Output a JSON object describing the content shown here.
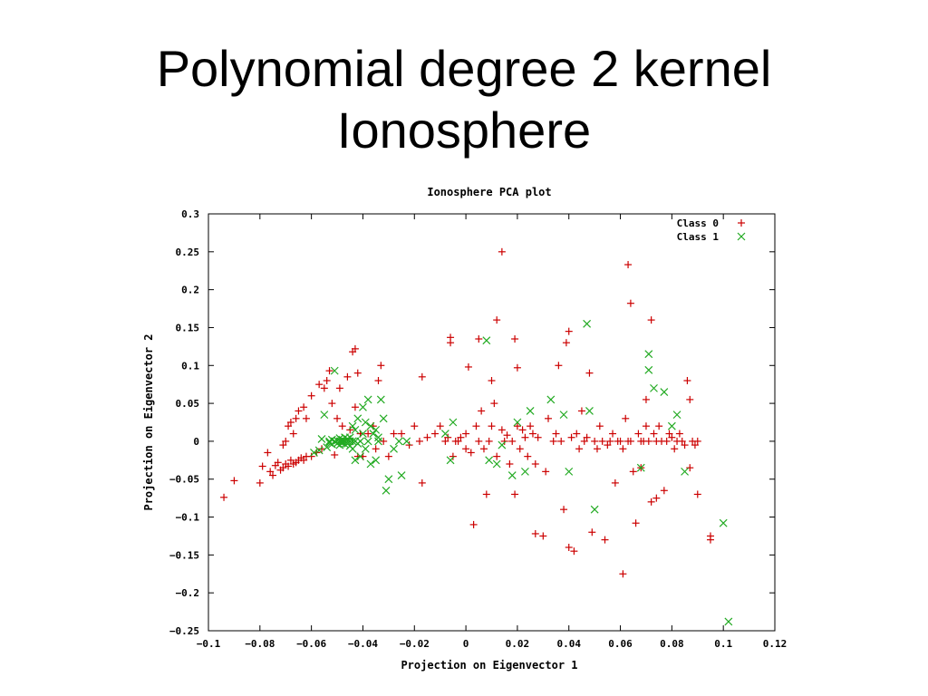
{
  "slide": {
    "title_line1": "Polynomial degree 2 kernel",
    "title_line2": "Ionosphere"
  },
  "chart_data": {
    "type": "scatter",
    "title": "Ionosphere PCA plot",
    "xlabel": "Projection on Eigenvector 1",
    "ylabel": "Projection on Eigenvector 2",
    "xlim": [
      -0.1,
      0.12
    ],
    "ylim": [
      -0.25,
      0.3
    ],
    "xticks": [
      "-0.1",
      "-0.08",
      "-0.06",
      "-0.04",
      "-0.02",
      "0",
      "0.02",
      "0.04",
      "0.06",
      "0.08",
      "0.1",
      "0.12"
    ],
    "yticks": [
      "-0.25",
      "-0.2",
      "-0.15",
      "-0.1",
      "-0.05",
      "0",
      "0.05",
      "0.1",
      "0.15",
      "0.2",
      "0.25",
      "0.3"
    ],
    "grid": false,
    "legend_position": "top-right",
    "series": [
      {
        "name": "Class 0",
        "marker": "+",
        "color": "#cc0000",
        "points": [
          [
            -0.094,
            -0.074
          ],
          [
            -0.09,
            -0.052
          ],
          [
            -0.08,
            -0.055
          ],
          [
            -0.079,
            -0.033
          ],
          [
            -0.077,
            -0.015
          ],
          [
            -0.076,
            -0.04
          ],
          [
            -0.075,
            -0.045
          ],
          [
            -0.074,
            -0.032
          ],
          [
            -0.073,
            -0.028
          ],
          [
            -0.072,
            -0.038
          ],
          [
            -0.071,
            -0.035
          ],
          [
            -0.071,
            -0.005
          ],
          [
            -0.07,
            -0.03
          ],
          [
            -0.07,
            0.0
          ],
          [
            -0.069,
            -0.033
          ],
          [
            -0.069,
            0.02
          ],
          [
            -0.068,
            -0.025
          ],
          [
            -0.068,
            0.025
          ],
          [
            -0.067,
            -0.03
          ],
          [
            -0.067,
            0.01
          ],
          [
            -0.066,
            -0.028
          ],
          [
            -0.066,
            0.03
          ],
          [
            -0.065,
            -0.025
          ],
          [
            -0.065,
            0.04
          ],
          [
            -0.064,
            -0.022
          ],
          [
            -0.063,
            -0.025
          ],
          [
            -0.063,
            0.045
          ],
          [
            -0.062,
            -0.02
          ],
          [
            -0.062,
            0.03
          ],
          [
            -0.06,
            -0.02
          ],
          [
            -0.06,
            0.06
          ],
          [
            -0.058,
            -0.015
          ],
          [
            -0.057,
            0.075
          ],
          [
            -0.056,
            -0.01
          ],
          [
            -0.055,
            0.07
          ],
          [
            -0.054,
            0.08
          ],
          [
            -0.053,
            0.093
          ],
          [
            -0.052,
            0.05
          ],
          [
            -0.051,
            -0.018
          ],
          [
            -0.05,
            0.03
          ],
          [
            -0.049,
            0.07
          ],
          [
            -0.048,
            0.02
          ],
          [
            -0.046,
            0.085
          ],
          [
            -0.045,
            0.015
          ],
          [
            -0.044,
            0.118
          ],
          [
            -0.043,
            0.045
          ],
          [
            -0.043,
            0.122
          ],
          [
            -0.042,
            0.09
          ],
          [
            -0.042,
            -0.02
          ],
          [
            -0.041,
            0.01
          ],
          [
            -0.04,
            -0.02
          ],
          [
            -0.038,
            0.01
          ],
          [
            -0.036,
            0.02
          ],
          [
            -0.035,
            -0.01
          ],
          [
            -0.034,
            0.08
          ],
          [
            -0.033,
            0.1
          ],
          [
            -0.032,
            0.0
          ],
          [
            -0.03,
            -0.02
          ],
          [
            -0.028,
            0.01
          ],
          [
            -0.025,
            0.01
          ],
          [
            -0.022,
            -0.005
          ],
          [
            -0.02,
            0.02
          ],
          [
            -0.018,
            0.0
          ],
          [
            -0.017,
            0.085
          ],
          [
            -0.017,
            -0.055
          ],
          [
            -0.015,
            0.005
          ],
          [
            -0.012,
            0.01
          ],
          [
            -0.01,
            0.02
          ],
          [
            -0.008,
            0.0
          ],
          [
            -0.007,
            0.005
          ],
          [
            -0.006,
            0.13
          ],
          [
            -0.006,
            0.137
          ],
          [
            -0.005,
            -0.02
          ],
          [
            -0.004,
            0.0
          ],
          [
            -0.003,
            0.0
          ],
          [
            -0.002,
            0.005
          ],
          [
            0.0,
            0.01
          ],
          [
            0.0,
            -0.01
          ],
          [
            0.001,
            0.098
          ],
          [
            0.002,
            -0.015
          ],
          [
            0.003,
            -0.11
          ],
          [
            0.004,
            0.02
          ],
          [
            0.005,
            0.0
          ],
          [
            0.005,
            0.135
          ],
          [
            0.006,
            0.04
          ],
          [
            0.007,
            -0.01
          ],
          [
            0.008,
            -0.07
          ],
          [
            0.009,
            0.0
          ],
          [
            0.01,
            0.08
          ],
          [
            0.01,
            0.02
          ],
          [
            0.011,
            0.05
          ],
          [
            0.012,
            0.16
          ],
          [
            0.012,
            -0.02
          ],
          [
            0.014,
            0.25
          ],
          [
            0.014,
            0.015
          ],
          [
            0.015,
            0.0
          ],
          [
            0.016,
            0.008
          ],
          [
            0.017,
            -0.03
          ],
          [
            0.018,
            0.0
          ],
          [
            0.019,
            0.135
          ],
          [
            0.019,
            -0.07
          ],
          [
            0.02,
            0.097
          ],
          [
            0.02,
            0.02
          ],
          [
            0.021,
            -0.01
          ],
          [
            0.022,
            0.015
          ],
          [
            0.023,
            0.005
          ],
          [
            0.024,
            -0.02
          ],
          [
            0.025,
            0.02
          ],
          [
            0.026,
            0.01
          ],
          [
            0.027,
            -0.03
          ],
          [
            0.027,
            -0.122
          ],
          [
            0.028,
            0.005
          ],
          [
            0.03,
            -0.125
          ],
          [
            0.031,
            -0.04
          ],
          [
            0.032,
            0.03
          ],
          [
            0.034,
            0.0
          ],
          [
            0.035,
            0.01
          ],
          [
            0.036,
            0.1
          ],
          [
            0.037,
            0.0
          ],
          [
            0.038,
            -0.09
          ],
          [
            0.039,
            0.13
          ],
          [
            0.04,
            -0.14
          ],
          [
            0.04,
            0.145
          ],
          [
            0.041,
            0.005
          ],
          [
            0.042,
            -0.145
          ],
          [
            0.043,
            0.01
          ],
          [
            0.044,
            -0.01
          ],
          [
            0.045,
            0.04
          ],
          [
            0.046,
            0.0
          ],
          [
            0.047,
            0.005
          ],
          [
            0.048,
            0.09
          ],
          [
            0.049,
            -0.12
          ],
          [
            0.05,
            0.0
          ],
          [
            0.051,
            -0.01
          ],
          [
            0.052,
            0.02
          ],
          [
            0.053,
            0.0
          ],
          [
            0.054,
            -0.13
          ],
          [
            0.055,
            -0.005
          ],
          [
            0.056,
            0.0
          ],
          [
            0.057,
            0.01
          ],
          [
            0.058,
            -0.055
          ],
          [
            0.059,
            0.0
          ],
          [
            0.06,
            0.0
          ],
          [
            0.061,
            -0.01
          ],
          [
            0.061,
            -0.175
          ],
          [
            0.062,
            0.03
          ],
          [
            0.063,
            0.233
          ],
          [
            0.063,
            0.0
          ],
          [
            0.064,
            0.0
          ],
          [
            0.064,
            0.182
          ],
          [
            0.065,
            -0.04
          ],
          [
            0.066,
            -0.108
          ],
          [
            0.067,
            0.01
          ],
          [
            0.068,
            0.0
          ],
          [
            0.068,
            -0.035
          ],
          [
            0.069,
            0.0
          ],
          [
            0.07,
            0.02
          ],
          [
            0.07,
            0.055
          ],
          [
            0.071,
            0.0
          ],
          [
            0.072,
            0.16
          ],
          [
            0.072,
            -0.08
          ],
          [
            0.073,
            0.01
          ],
          [
            0.074,
            -0.075
          ],
          [
            0.074,
            0.0
          ],
          [
            0.075,
            0.02
          ],
          [
            0.076,
            0.0
          ],
          [
            0.077,
            -0.065
          ],
          [
            0.078,
            0.0
          ],
          [
            0.079,
            0.01
          ],
          [
            0.08,
            0.005
          ],
          [
            0.081,
            -0.01
          ],
          [
            0.082,
            0.0
          ],
          [
            0.083,
            0.01
          ],
          [
            0.084,
            0.0
          ],
          [
            0.085,
            -0.005
          ],
          [
            0.086,
            0.08
          ],
          [
            0.087,
            0.055
          ],
          [
            0.087,
            -0.035
          ],
          [
            0.088,
            0.0
          ],
          [
            0.089,
            -0.005
          ],
          [
            0.09,
            0.0
          ],
          [
            0.09,
            -0.07
          ],
          [
            0.095,
            -0.125
          ],
          [
            0.095,
            -0.13
          ]
        ]
      },
      {
        "name": "Class 1",
        "marker": "x",
        "color": "#22aa22",
        "points": [
          [
            -0.059,
            -0.015
          ],
          [
            -0.057,
            -0.012
          ],
          [
            -0.056,
            0.003
          ],
          [
            -0.055,
            0.035
          ],
          [
            -0.054,
            -0.008
          ],
          [
            -0.053,
            -0.002
          ],
          [
            -0.053,
            0.0
          ],
          [
            -0.052,
            0.002
          ],
          [
            -0.052,
            -0.004
          ],
          [
            -0.051,
            0.0
          ],
          [
            -0.051,
            0.093
          ],
          [
            -0.05,
            0.001
          ],
          [
            -0.05,
            -0.003
          ],
          [
            -0.049,
            0.0
          ],
          [
            -0.049,
            0.004
          ],
          [
            -0.049,
            -0.005
          ],
          [
            -0.048,
            0.0
          ],
          [
            -0.048,
            0.002
          ],
          [
            -0.048,
            -0.002
          ],
          [
            -0.047,
            0.0
          ],
          [
            -0.047,
            0.005
          ],
          [
            -0.047,
            -0.004
          ],
          [
            -0.046,
            0.0
          ],
          [
            -0.046,
            0.003
          ],
          [
            -0.046,
            -0.003
          ],
          [
            -0.045,
            0.0
          ],
          [
            -0.045,
            -0.006
          ],
          [
            -0.045,
            0.005
          ],
          [
            -0.044,
            0.0
          ],
          [
            -0.044,
            0.02
          ],
          [
            -0.044,
            -0.01
          ],
          [
            -0.043,
            0.0
          ],
          [
            -0.043,
            0.015
          ],
          [
            -0.043,
            -0.025
          ],
          [
            -0.042,
            -0.003
          ],
          [
            -0.042,
            0.03
          ],
          [
            -0.041,
            0.0
          ],
          [
            -0.041,
            -0.02
          ],
          [
            -0.04,
            0.01
          ],
          [
            -0.04,
            0.045
          ],
          [
            -0.039,
            -0.01
          ],
          [
            -0.039,
            0.025
          ],
          [
            -0.038,
            0.055
          ],
          [
            -0.038,
            0.0
          ],
          [
            -0.037,
            0.02
          ],
          [
            -0.037,
            -0.03
          ],
          [
            -0.036,
            0.01
          ],
          [
            -0.035,
            0.015
          ],
          [
            -0.035,
            -0.025
          ],
          [
            -0.034,
            0.005
          ],
          [
            -0.034,
            0.0
          ],
          [
            -0.033,
            0.055
          ],
          [
            -0.032,
            0.03
          ],
          [
            -0.031,
            -0.065
          ],
          [
            -0.03,
            -0.05
          ],
          [
            -0.028,
            -0.01
          ],
          [
            -0.026,
            0.0
          ],
          [
            -0.025,
            -0.045
          ],
          [
            -0.023,
            0.0
          ],
          [
            -0.008,
            0.01
          ],
          [
            -0.006,
            -0.025
          ],
          [
            -0.005,
            0.025
          ],
          [
            0.008,
            0.133
          ],
          [
            0.009,
            -0.025
          ],
          [
            0.012,
            -0.03
          ],
          [
            0.014,
            -0.005
          ],
          [
            0.018,
            -0.045
          ],
          [
            0.02,
            0.025
          ],
          [
            0.023,
            -0.04
          ],
          [
            0.025,
            0.04
          ],
          [
            0.033,
            0.055
          ],
          [
            0.038,
            0.035
          ],
          [
            0.04,
            -0.04
          ],
          [
            0.047,
            0.155
          ],
          [
            0.048,
            0.04
          ],
          [
            0.05,
            -0.09
          ],
          [
            0.068,
            -0.035
          ],
          [
            0.071,
            0.115
          ],
          [
            0.071,
            0.094
          ],
          [
            0.073,
            0.07
          ],
          [
            0.077,
            0.065
          ],
          [
            0.08,
            0.02
          ],
          [
            0.082,
            0.035
          ],
          [
            0.085,
            -0.04
          ],
          [
            0.1,
            -0.108
          ],
          [
            0.102,
            -0.238
          ]
        ]
      }
    ]
  }
}
